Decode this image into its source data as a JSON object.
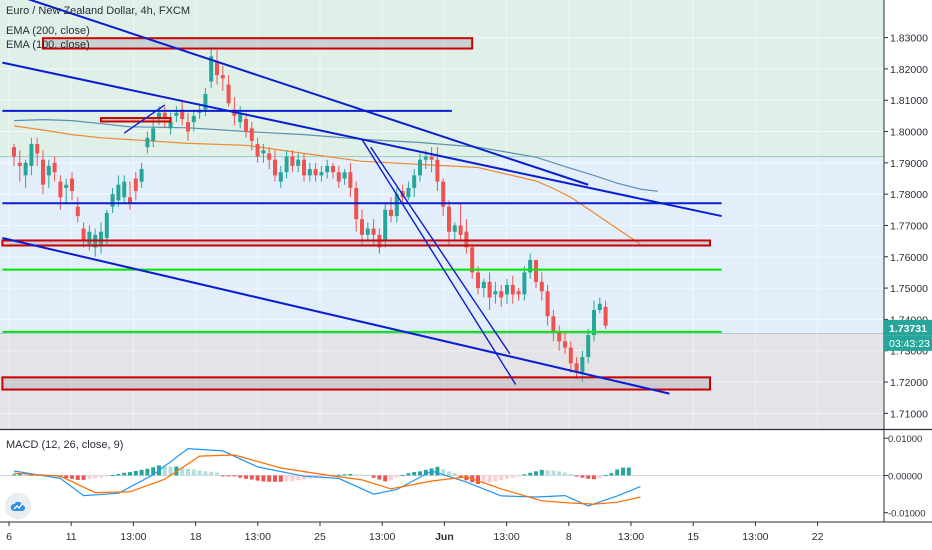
{
  "chart_title": "Euro / New Zealand Dollar, 4h, FXCM",
  "ema_labels": [
    "EMA (200, close)",
    "EMA (100, close)"
  ],
  "macd_label": "MACD (12, 26, close, 9)",
  "price_axis": {
    "ticks": [
      "1.83000",
      "1.82000",
      "1.81000",
      "1.80000",
      "1.79000",
      "1.78000",
      "1.77000",
      "1.76000",
      "1.75000",
      "1.74000",
      "1.73000",
      "1.72000",
      "1.71000"
    ],
    "tick_values": [
      1.83,
      1.82,
      1.81,
      1.8,
      1.79,
      1.78,
      1.77,
      1.76,
      1.75,
      1.74,
      1.73,
      1.72,
      1.71
    ],
    "last_price": "1.73731",
    "countdown": "03:43:23"
  },
  "macd_axis": {
    "ticks": [
      "0.01000",
      "0.00000",
      "-0.01000"
    ],
    "tick_values": [
      0.01,
      0.0,
      -0.01
    ]
  },
  "time_axis": {
    "labels": [
      "6",
      "11",
      "13:00",
      "18",
      "13:00",
      "25",
      "13:00",
      "Jun",
      "13:00",
      "8",
      "13:00",
      "15",
      "13:00",
      "22"
    ]
  },
  "colors": {
    "up": "#26a69a",
    "down": "#ef5350",
    "trend": "#0a1ecf",
    "zone_red": "#cc0000",
    "green_line": "#00e600",
    "ema200": "#5b8fb3",
    "ema100": "#f0892f",
    "bg_top": "#dff0e8",
    "bg_mid": "#e3eefb",
    "bg_low": "#e4e4e8"
  },
  "chart_data": {
    "type": "candlestick",
    "symbol": "EURNZD",
    "timeframe": "4h",
    "ylim": [
      1.705,
      1.842
    ],
    "macd_ylim": [
      -0.0125,
      0.0122
    ],
    "candles": [
      [
        1.795,
        1.792,
        1.796,
        1.789
      ],
      [
        1.79,
        1.789,
        1.794,
        1.784
      ],
      [
        1.786,
        1.79,
        1.791,
        1.782
      ],
      [
        1.789,
        1.796,
        1.798,
        1.786
      ],
      [
        1.796,
        1.793,
        1.798,
        1.789
      ],
      [
        1.791,
        1.783,
        1.794,
        1.78
      ],
      [
        1.786,
        1.789,
        1.791,
        1.782
      ],
      [
        1.79,
        1.787,
        1.792,
        1.784
      ],
      [
        1.784,
        1.779,
        1.786,
        1.775
      ],
      [
        1.782,
        1.783,
        1.785,
        1.777
      ],
      [
        1.785,
        1.781,
        1.787,
        1.778
      ],
      [
        1.776,
        1.773,
        1.779,
        1.771
      ],
      [
        1.769,
        1.765,
        1.771,
        1.763
      ],
      [
        1.764,
        1.768,
        1.77,
        1.762
      ],
      [
        1.763,
        1.767,
        1.769,
        1.76
      ],
      [
        1.764,
        1.768,
        1.771,
        1.761
      ],
      [
        1.766,
        1.774,
        1.775,
        1.764
      ],
      [
        1.776,
        1.78,
        1.782,
        1.774
      ],
      [
        1.778,
        1.783,
        1.786,
        1.776
      ],
      [
        1.779,
        1.784,
        1.786,
        1.777
      ],
      [
        1.779,
        1.777,
        1.784,
        1.775
      ],
      [
        1.785,
        1.781,
        1.787,
        1.778
      ],
      [
        1.784,
        1.788,
        1.79,
        1.782
      ],
      [
        1.795,
        1.798,
        1.8,
        1.793
      ],
      [
        1.797,
        1.801,
        1.804,
        1.795
      ],
      [
        1.804,
        1.806,
        1.808,
        1.802
      ],
      [
        1.806,
        1.804,
        1.808,
        1.801
      ],
      [
        1.801,
        1.803,
        1.806,
        1.799
      ],
      [
        1.805,
        1.806,
        1.808,
        1.803
      ],
      [
        1.807,
        1.804,
        1.81,
        1.802
      ],
      [
        1.803,
        1.8,
        1.806,
        1.797
      ],
      [
        1.803,
        1.805,
        1.807,
        1.8
      ],
      [
        1.806,
        1.807,
        1.809,
        1.804
      ],
      [
        1.807,
        1.812,
        1.814,
        1.805
      ],
      [
        1.816,
        1.824,
        1.827,
        1.814
      ],
      [
        1.822,
        1.818,
        1.826,
        1.815
      ],
      [
        1.818,
        1.817,
        1.821,
        1.813
      ],
      [
        1.815,
        1.809,
        1.818,
        1.808
      ],
      [
        1.807,
        1.805,
        1.811,
        1.802
      ],
      [
        1.803,
        1.806,
        1.808,
        1.801
      ],
      [
        1.804,
        1.8,
        1.806,
        1.798
      ],
      [
        1.801,
        1.797,
        1.803,
        1.794
      ],
      [
        1.796,
        1.792,
        1.798,
        1.79
      ],
      [
        1.793,
        1.794,
        1.796,
        1.79
      ],
      [
        1.793,
        1.791,
        1.795,
        1.788
      ],
      [
        1.791,
        1.786,
        1.794,
        1.784
      ],
      [
        1.784,
        1.787,
        1.789,
        1.782
      ],
      [
        1.787,
        1.792,
        1.794,
        1.785
      ],
      [
        1.792,
        1.789,
        1.794,
        1.787
      ],
      [
        1.789,
        1.791,
        1.793,
        1.787
      ],
      [
        1.791,
        1.786,
        1.793,
        1.784
      ],
      [
        1.786,
        1.788,
        1.79,
        1.784
      ],
      [
        1.788,
        1.786,
        1.79,
        1.784
      ],
      [
        1.786,
        1.787,
        1.789,
        1.784
      ],
      [
        1.787,
        1.789,
        1.791,
        1.785
      ],
      [
        1.789,
        1.787,
        1.79,
        1.785
      ],
      [
        1.787,
        1.784,
        1.789,
        1.782
      ],
      [
        1.785,
        1.787,
        1.788,
        1.783
      ],
      [
        1.787,
        1.782,
        1.79,
        1.779
      ],
      [
        1.782,
        1.772,
        1.784,
        1.768
      ],
      [
        1.772,
        1.767,
        1.775,
        1.764
      ],
      [
        1.767,
        1.769,
        1.771,
        1.765
      ],
      [
        1.769,
        1.767,
        1.772,
        1.764
      ],
      [
        1.767,
        1.763,
        1.769,
        1.761
      ],
      [
        1.765,
        1.775,
        1.777,
        1.763
      ],
      [
        1.775,
        1.773,
        1.779,
        1.771
      ],
      [
        1.773,
        1.78,
        1.782,
        1.771
      ],
      [
        1.781,
        1.779,
        1.783,
        1.777
      ],
      [
        1.779,
        1.782,
        1.784,
        1.778
      ],
      [
        1.782,
        1.786,
        1.788,
        1.779
      ],
      [
        1.786,
        1.791,
        1.793,
        1.784
      ],
      [
        1.791,
        1.792,
        1.794,
        1.788
      ],
      [
        1.792,
        1.791,
        1.795,
        1.787
      ],
      [
        1.791,
        1.784,
        1.795,
        1.781
      ],
      [
        1.784,
        1.776,
        1.785,
        1.773
      ],
      [
        1.776,
        1.768,
        1.778,
        1.764
      ],
      [
        1.768,
        1.77,
        1.771,
        1.765
      ],
      [
        1.77,
        1.767,
        1.777,
        1.765
      ],
      [
        1.768,
        1.763,
        1.772,
        1.761
      ],
      [
        1.763,
        1.755,
        1.764,
        1.753
      ],
      [
        1.755,
        1.75,
        1.757,
        1.748
      ],
      [
        1.75,
        1.752,
        1.753,
        1.747
      ],
      [
        1.752,
        1.747,
        1.755,
        1.743
      ],
      [
        1.748,
        1.749,
        1.752,
        1.745
      ],
      [
        1.749,
        1.747,
        1.751,
        1.744
      ],
      [
        1.748,
        1.751,
        1.753,
        1.745
      ],
      [
        1.751,
        1.748,
        1.754,
        1.745
      ],
      [
        1.749,
        1.748,
        1.75,
        1.746
      ],
      [
        1.748,
        1.755,
        1.757,
        1.746
      ],
      [
        1.755,
        1.759,
        1.761,
        1.753
      ],
      [
        1.759,
        1.752,
        1.759,
        1.75
      ],
      [
        1.752,
        1.749,
        1.755,
        1.746
      ],
      [
        1.749,
        1.741,
        1.751,
        1.738
      ],
      [
        1.741,
        1.736,
        1.743,
        1.733
      ],
      [
        1.736,
        1.733,
        1.738,
        1.73
      ],
      [
        1.733,
        1.731,
        1.736,
        1.729
      ],
      [
        1.731,
        1.726,
        1.733,
        1.723
      ],
      [
        1.726,
        1.723,
        1.728,
        1.721
      ],
      [
        1.723,
        1.728,
        1.73,
        1.72
      ],
      [
        1.728,
        1.735,
        1.737,
        1.726
      ],
      [
        1.735,
        1.743,
        1.746,
        1.733
      ],
      [
        1.743,
        1.745,
        1.747,
        1.742
      ],
      [
        1.744,
        1.738,
        1.746,
        1.737
      ]
    ],
    "ema200": [
      [
        0,
        1.8035
      ],
      [
        5,
        1.8038
      ],
      [
        10,
        1.8035
      ],
      [
        15,
        1.8025
      ],
      [
        20,
        1.8015
      ],
      [
        30,
        1.8012
      ],
      [
        40,
        1.8
      ],
      [
        50,
        1.799
      ],
      [
        60,
        1.7975
      ],
      [
        70,
        1.7965
      ],
      [
        80,
        1.795
      ],
      [
        90,
        1.7918
      ],
      [
        95,
        1.7888
      ],
      [
        100,
        1.786
      ],
      [
        104,
        1.7835
      ],
      [
        108,
        1.7816
      ],
      [
        111,
        1.7809
      ]
    ],
    "ema100": [
      [
        0,
        1.8018
      ],
      [
        5,
        1.8005
      ],
      [
        10,
        1.799
      ],
      [
        15,
        1.798
      ],
      [
        22,
        1.7972
      ],
      [
        30,
        1.7962
      ],
      [
        40,
        1.7956
      ],
      [
        50,
        1.793
      ],
      [
        60,
        1.7905
      ],
      [
        70,
        1.7895
      ],
      [
        80,
        1.7885
      ],
      [
        90,
        1.7842
      ],
      [
        93,
        1.7818
      ],
      [
        96,
        1.779
      ],
      [
        100,
        1.774
      ],
      [
        104,
        1.769
      ],
      [
        108,
        1.764
      ]
    ],
    "macd_line": [
      [
        0,
        0.0012
      ],
      [
        8,
        -0.0008
      ],
      [
        12,
        -0.0054
      ],
      [
        18,
        -0.0048
      ],
      [
        24,
        0.0002
      ],
      [
        30,
        0.0072
      ],
      [
        36,
        0.0066
      ],
      [
        42,
        0.0023
      ],
      [
        50,
        -0.0002
      ],
      [
        56,
        -0.0008
      ],
      [
        62,
        -0.005
      ],
      [
        66,
        -0.0038
      ],
      [
        72,
        0.0012
      ],
      [
        78,
        -0.0018
      ],
      [
        84,
        -0.0055
      ],
      [
        90,
        -0.0058
      ],
      [
        95,
        -0.0054
      ],
      [
        99,
        -0.0082
      ],
      [
        104,
        -0.0055
      ],
      [
        108,
        -0.003
      ]
    ],
    "signal_line": [
      [
        0,
        0.0006
      ],
      [
        8,
        -0.0002
      ],
      [
        14,
        -0.0046
      ],
      [
        20,
        -0.0044
      ],
      [
        26,
        -0.001
      ],
      [
        32,
        0.0052
      ],
      [
        38,
        0.0055
      ],
      [
        46,
        0.002
      ],
      [
        54,
        0.0001
      ],
      [
        60,
        -0.0012
      ],
      [
        65,
        -0.0036
      ],
      [
        72,
        -0.0015
      ],
      [
        78,
        -0.0004
      ],
      [
        84,
        -0.0036
      ],
      [
        91,
        -0.0068
      ],
      [
        96,
        -0.0074
      ],
      [
        100,
        -0.0077
      ],
      [
        104,
        -0.0072
      ],
      [
        108,
        -0.0058
      ]
    ],
    "histogram": [
      0.0003,
      0.0004,
      0.0002,
      0.0002,
      0.0002,
      0.0002,
      0.0001,
      0.0001,
      -0.0005,
      -0.0007,
      -0.0009,
      -0.0012,
      -0.0012,
      -0.001,
      -0.0008,
      -0.0006,
      -0.0003,
      0.0001,
      0.0004,
      0.0007,
      0.0009,
      0.0012,
      0.0015,
      0.0018,
      0.0022,
      0.0027,
      0.0025,
      0.0024,
      0.0024,
      0.0021,
      0.0018,
      0.0016,
      0.0013,
      0.0011,
      0.001,
      0.0008,
      -0.0002,
      -0.0002,
      -0.0002,
      -0.0006,
      -0.0009,
      -0.0011,
      -0.0014,
      -0.0016,
      -0.0017,
      -0.0017,
      -0.0017,
      -0.0016,
      -0.0015,
      -0.0013,
      -0.0011,
      -0.0009,
      -0.0007,
      -0.0004,
      -0.0002,
      0.0001,
      0.0002,
      0.0003,
      0.0004,
      0.0003,
      0.0002,
      0.0001,
      -0.0006,
      -0.0011,
      -0.0016,
      -0.0013,
      -0.0005,
      0.0001,
      0.0006,
      0.0009,
      0.0011,
      0.0015,
      0.0019,
      0.0023,
      0.0017,
      0.0011,
      0.0006,
      -0.0004,
      -0.0013,
      -0.0018,
      -0.0023,
      -0.0022,
      -0.0019,
      -0.0016,
      -0.0013,
      -0.001,
      -0.0006,
      -0.0003,
      0.0003,
      0.0007,
      0.0011,
      0.0015,
      0.0014,
      0.0013,
      0.0011,
      0.0008,
      0.0004,
      -0.0003,
      -0.0006,
      -0.0009,
      -0.001,
      -0.0008,
      0.0001,
      0.0006,
      0.0016,
      0.0021,
      0.0021
    ],
    "zones": [
      {
        "kind": "red-box",
        "x": [
          5,
          79
        ],
        "y": [
          1.8265,
          1.8298
        ]
      },
      {
        "kind": "red-box",
        "x": [
          15,
          27
        ],
        "y": [
          1.8032,
          1.8043
        ]
      },
      {
        "kind": "red-box",
        "x": [
          -2,
          120
        ],
        "y": [
          1.7636,
          1.7652
        ]
      },
      {
        "kind": "red-box",
        "x": [
          -2,
          120
        ],
        "y": [
          1.7176,
          1.7215
        ]
      }
    ],
    "horizontal_lines": [
      {
        "kind": "blue",
        "x": [
          -2,
          75.5
        ],
        "y": 1.8066
      },
      {
        "kind": "blue",
        "x": [
          -2,
          122
        ],
        "y": 1.7771
      },
      {
        "kind": "green",
        "x": [
          -2,
          122
        ],
        "y": 1.7559
      },
      {
        "kind": "green",
        "x": [
          -2,
          122
        ],
        "y": 1.736
      }
    ],
    "trend_lines": [
      {
        "x": [
          -2,
          99
        ],
        "y": [
          1.845,
          1.783
        ]
      },
      {
        "x": [
          -2,
          122
        ],
        "y": [
          1.822,
          1.773
        ]
      },
      {
        "x": [
          -2,
          113
        ],
        "y": [
          1.766,
          1.7163
        ]
      },
      {
        "x": [
          60,
          86.5
        ],
        "y": [
          1.7975,
          1.7192
        ]
      },
      {
        "x": [
          61.5,
          85.5
        ],
        "y": [
          1.795,
          1.729
        ]
      },
      {
        "x": [
          19,
          26
        ],
        "y": [
          1.7995,
          1.8085
        ]
      }
    ]
  }
}
